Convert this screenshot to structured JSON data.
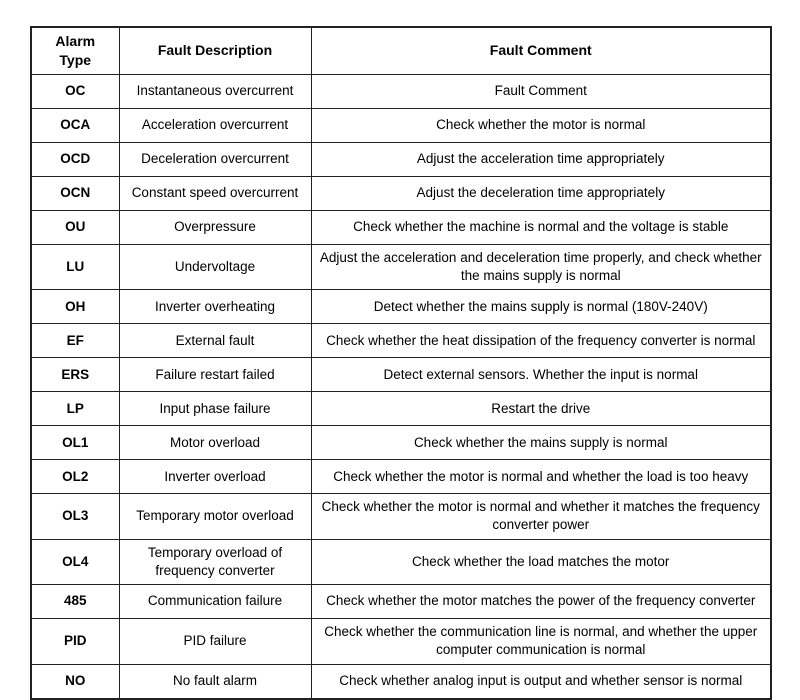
{
  "table": {
    "headers": [
      "Alarm Type",
      "Fault Description",
      "Fault Comment"
    ],
    "rows": [
      {
        "type": "OC",
        "description": "Instantaneous overcurrent",
        "comment": "Fault Comment"
      },
      {
        "type": "OCA",
        "description": "Acceleration overcurrent",
        "comment": "Check whether the motor is normal"
      },
      {
        "type": "OCD",
        "description": "Deceleration overcurrent",
        "comment": "Adjust the acceleration time appropriately"
      },
      {
        "type": "OCN",
        "description": "Constant speed overcurrent",
        "comment": "Adjust the deceleration time appropriately"
      },
      {
        "type": "OU",
        "description": "Overpressure",
        "comment": "Check whether the machine is normal and the voltage is stable"
      },
      {
        "type": "LU",
        "description": "Undervoltage",
        "comment": "Adjust the acceleration and deceleration time properly, and check whether the mains supply is normal"
      },
      {
        "type": "OH",
        "description": "Inverter overheating",
        "comment": "Detect whether the mains supply is normal (180V-240V)"
      },
      {
        "type": "EF",
        "description": "External fault",
        "comment": "Check whether the heat dissipation of the frequency converter is normal"
      },
      {
        "type": "ERS",
        "description": "Failure restart failed",
        "comment": "Detect external sensors. Whether the input is normal"
      },
      {
        "type": "LP",
        "description": "Input phase failure",
        "comment": "Restart the drive"
      },
      {
        "type": "OL1",
        "description": "Motor overload",
        "comment": "Check whether the mains supply is normal"
      },
      {
        "type": "OL2",
        "description": "Inverter overload",
        "comment": "Check whether the motor is normal and whether the load is too heavy"
      },
      {
        "type": "OL3",
        "description": "Temporary motor overload",
        "comment": "Check whether the motor is normal and whether it matches the frequency converter power"
      },
      {
        "type": "OL4",
        "description": "Temporary overload of frequency converter",
        "comment": "Check whether the load matches the motor"
      },
      {
        "type": "485",
        "description": "Communication failure",
        "comment": "Check whether the motor matches the power of the frequency converter"
      },
      {
        "type": "PID",
        "description": "PID failure",
        "comment": "Check whether the communication line is normal, and whether the upper computer communication is normal"
      },
      {
        "type": "NO",
        "description": "No fault alarm",
        "comment": "Check whether analog input is output and whether sensor is normal"
      }
    ]
  }
}
